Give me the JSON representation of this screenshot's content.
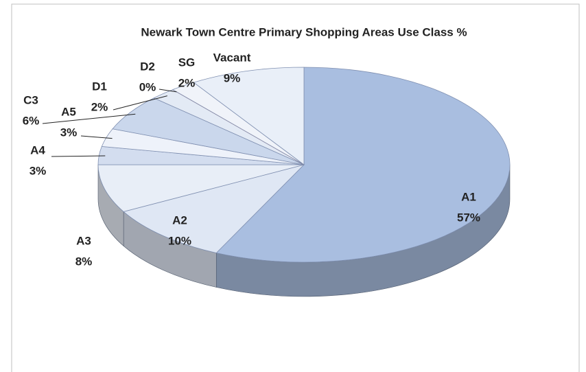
{
  "chart_data": {
    "type": "pie3d",
    "title": "Newark Town Centre Primary Shopping Areas Use Class %",
    "categories": [
      "A1",
      "A2",
      "A3",
      "A4",
      "A5",
      "C3",
      "D1",
      "D2",
      "SG",
      "Vacant"
    ],
    "values": [
      57,
      10,
      8,
      3,
      3,
      6,
      2,
      0,
      2,
      9
    ],
    "value_labels": [
      "57%",
      "10%",
      "8%",
      "3%",
      "3%",
      "6%",
      "2%",
      "0%",
      "2%",
      "9%"
    ],
    "colors": [
      "#a9bee0",
      "#dfe7f4",
      "#e8eef7",
      "#d3ddef",
      "#eef2fa",
      "#cad7ec",
      "#e3eaf5",
      "#b03a2e",
      "#f0f3f9",
      "#e9eff8"
    ]
  }
}
